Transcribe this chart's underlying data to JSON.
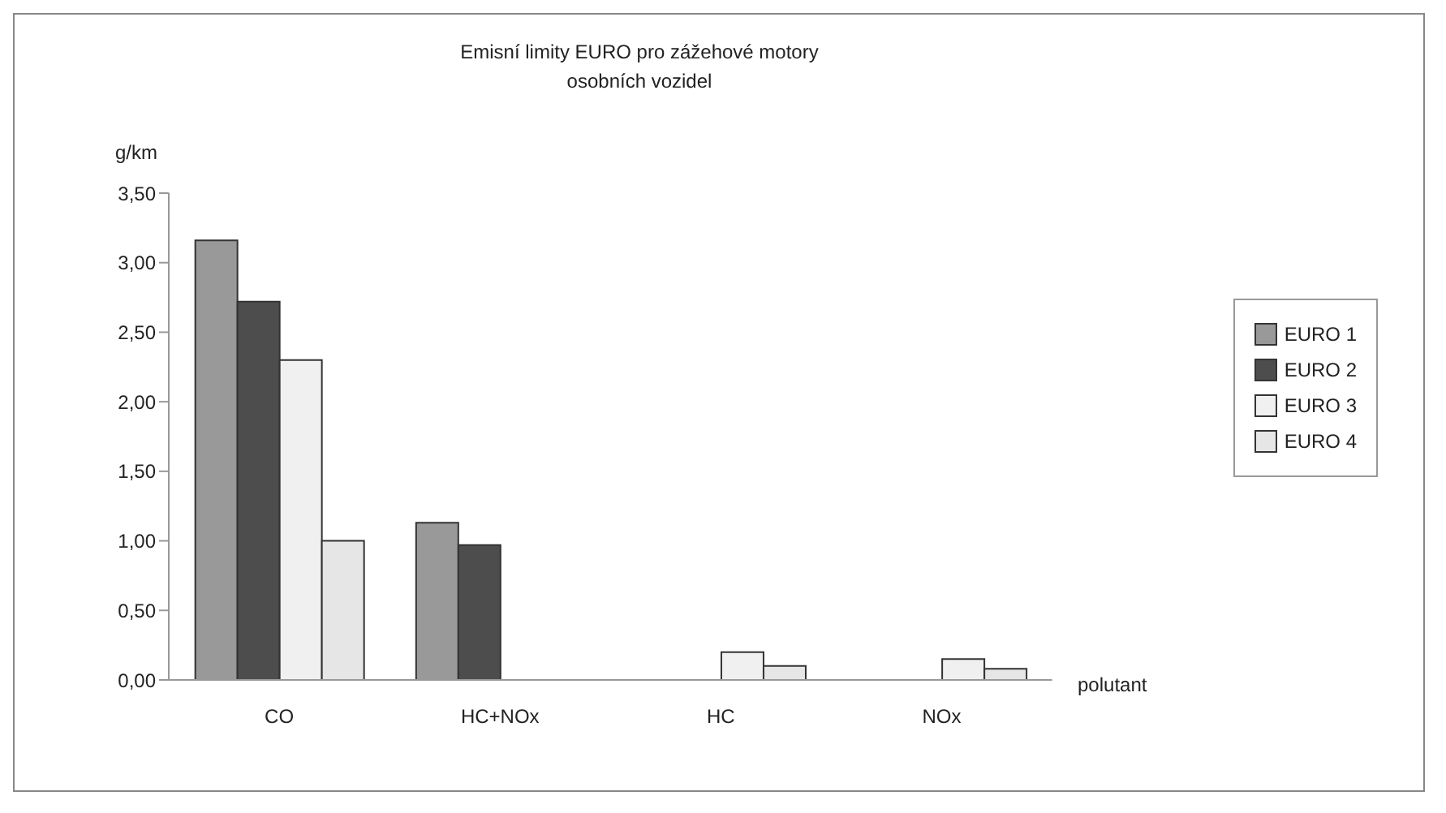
{
  "chart_data": {
    "type": "bar",
    "title": "Emisní limity EURO pro zážehové motory osobních vozidel",
    "xlabel": "polutant",
    "ylabel": "g/km",
    "categories": [
      "CO",
      "HC+NOx",
      "HC",
      "NOx"
    ],
    "series": [
      {
        "name": "EURO 1",
        "color": "#999999",
        "values": [
          3.16,
          1.13,
          null,
          null
        ]
      },
      {
        "name": "EURO 2",
        "color": "#4d4d4d",
        "values": [
          2.72,
          0.97,
          null,
          null
        ]
      },
      {
        "name": "EURO 3",
        "color": "#f0f0f0",
        "values": [
          2.3,
          null,
          0.2,
          0.15
        ]
      },
      {
        "name": "EURO 4",
        "color": "#e6e6e6",
        "values": [
          1.0,
          null,
          0.1,
          0.08
        ]
      }
    ],
    "ylim": [
      0,
      3.5
    ],
    "yticks": [
      {
        "value": 0,
        "label": "0,00"
      },
      {
        "value": 0.5,
        "label": "0,50"
      },
      {
        "value": 1,
        "label": "1,00"
      },
      {
        "value": 1.5,
        "label": "1,50"
      },
      {
        "value": 2,
        "label": "2,00"
      },
      {
        "value": 2.5,
        "label": "2,50"
      },
      {
        "value": 3,
        "label": "3,00"
      },
      {
        "value": 3.5,
        "label": "3,50"
      }
    ],
    "grid": false,
    "legend": "right"
  }
}
